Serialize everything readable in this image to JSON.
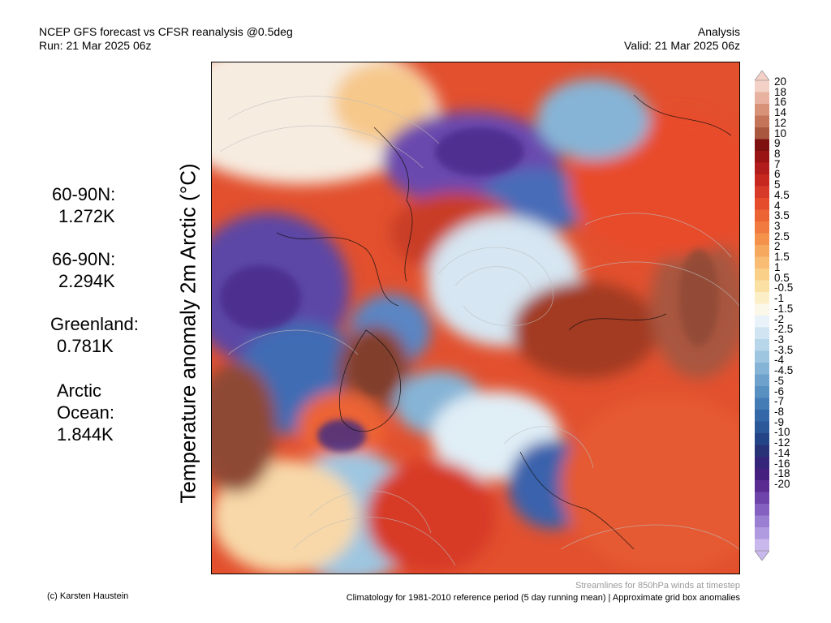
{
  "header": {
    "title_line1": "NCEP GFS forecast vs CFSR reanalysis @0.5deg",
    "title_line2": "Run: 21 Mar 2025 06z",
    "right_line1": "Analysis",
    "right_line2": "Valid: 21 Mar 2025 06z"
  },
  "axis_label": "Temperature anomaly 2m Arctic (°C)",
  "stats": [
    {
      "label": "60-90N:",
      "value": "1.272K"
    },
    {
      "label": "66-90N:",
      "value": "2.294K"
    },
    {
      "label": "Greenland:",
      "value": "0.781K"
    },
    {
      "label": "Arctic\nOcean:",
      "value": "1.844K"
    }
  ],
  "colorbar": {
    "labels": [
      "20",
      "18",
      "16",
      "14",
      "12",
      "10",
      "9",
      "8",
      "7",
      "6",
      "5",
      "4.5",
      "4",
      "3.5",
      "3",
      "2.5",
      "2",
      "1.5",
      "1",
      "0.5",
      "-0.5",
      "-1",
      "-1.5",
      "-2",
      "-2.5",
      "-3",
      "-3.5",
      "-4",
      "-4.5",
      "-5",
      "-6",
      "-7",
      "-8",
      "-9",
      "-10",
      "-12",
      "-14",
      "-16",
      "-18",
      "-20"
    ],
    "colors": [
      "#f3d1c6",
      "#e7b3a0",
      "#d79278",
      "#c47458",
      "#a9573f",
      "#7e1010",
      "#9a1414",
      "#b21c1a",
      "#c62820",
      "#d73a28",
      "#e44c2c",
      "#ec6434",
      "#f07a40",
      "#f4924c",
      "#f6a85e",
      "#f8bc72",
      "#fad088",
      "#fbe0a4",
      "#fcefc8",
      "#fbf8ea",
      "#e8f2f8",
      "#d0e4f2",
      "#b8d6ea",
      "#9ec6e0",
      "#86b4d6",
      "#6ea2cc",
      "#5890c2",
      "#447cb6",
      "#3568a8",
      "#2a5898",
      "#244488",
      "#283276",
      "#34247a",
      "#45207e",
      "#5a2c92",
      "#6e44aa",
      "#8460c0",
      "#9a7ed2",
      "#b09ae0",
      "#c8b8ec"
    ]
  },
  "footer": {
    "credit": "(c) Karsten Haustein",
    "streamlines": "Streamlines for 850hPa winds at timestep",
    "climatology": "Climatology for 1981-2010 reference period (5 day running mean) | Approximate grid box anomalies"
  }
}
